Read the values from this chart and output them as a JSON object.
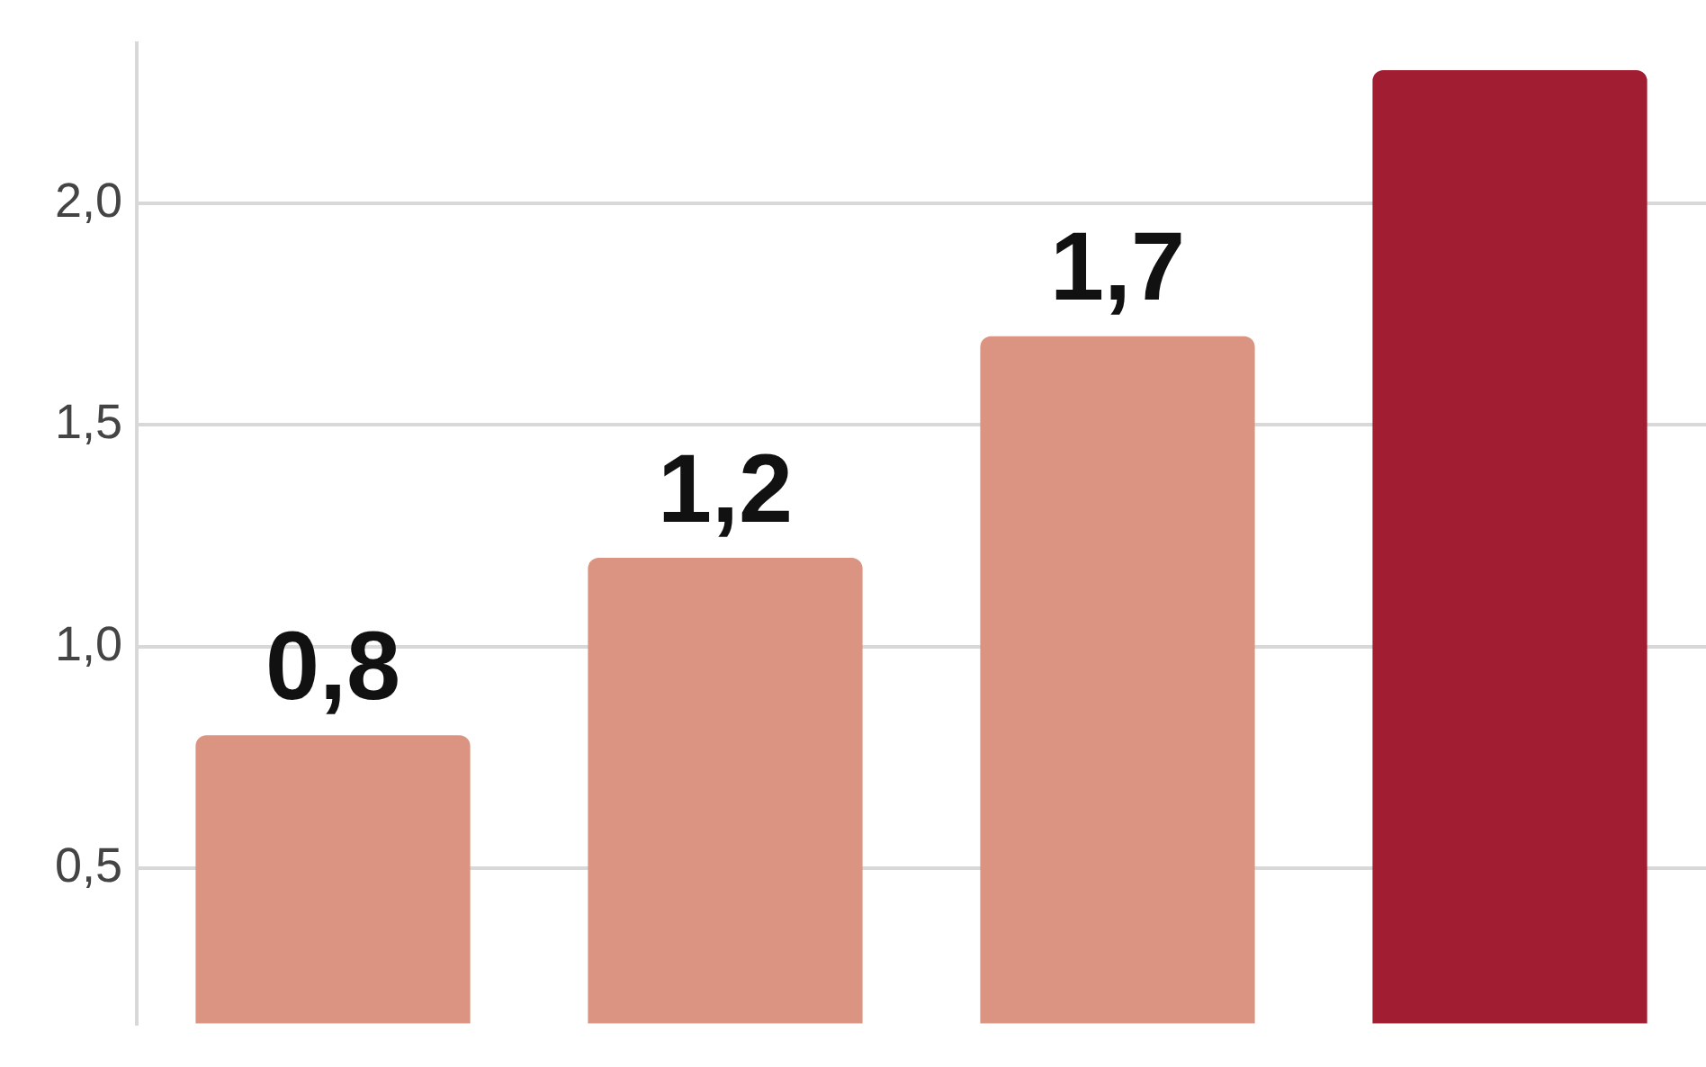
{
  "chart_data": {
    "type": "bar",
    "categories": [
      null,
      null,
      null,
      null
    ],
    "values": [
      0.8,
      1.2,
      1.7,
      2.3
    ],
    "colors": [
      "#dc9482",
      "#dc9482",
      "#dc9482",
      "#a11d32"
    ],
    "value_labels": [
      "0,8",
      "1,2",
      "1,7",
      null
    ],
    "ylim": [
      0.15,
      2.36
    ],
    "yticks": [
      {
        "value": 0.5,
        "label": "0,5"
      },
      {
        "value": 1.0,
        "label": "1,0"
      },
      {
        "value": 1.5,
        "label": "1,5"
      },
      {
        "value": 2.0,
        "label": "2,0"
      }
    ],
    "grid": "y"
  }
}
